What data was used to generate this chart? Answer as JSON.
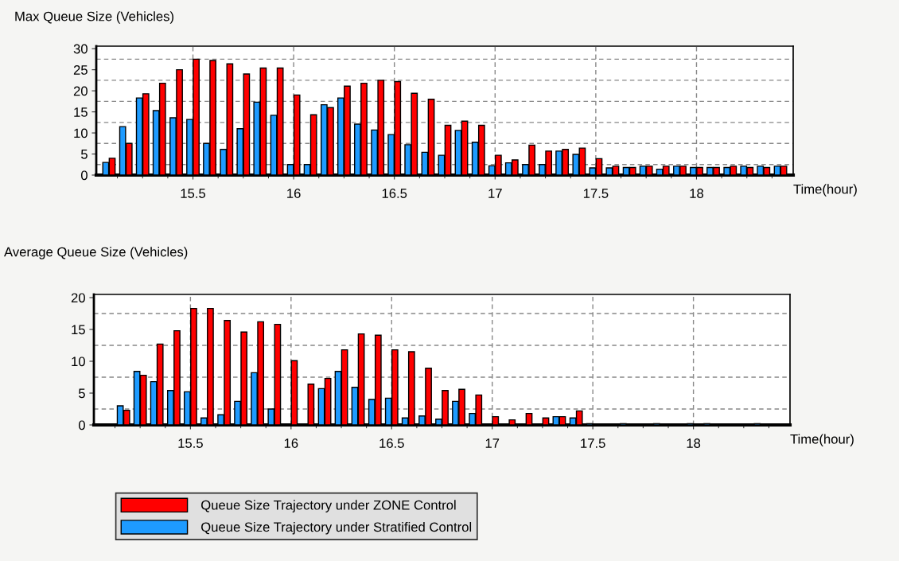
{
  "chart_data": [
    {
      "type": "bar",
      "title": "Max Queue Size (Vehicles)",
      "xlabel": "Time(hour)",
      "x": [
        15.083,
        15.167,
        15.25,
        15.333,
        15.417,
        15.5,
        15.583,
        15.667,
        15.75,
        15.833,
        15.917,
        16,
        16.083,
        16.167,
        16.25,
        16.333,
        16.417,
        16.5,
        16.583,
        16.667,
        16.75,
        16.833,
        16.917,
        17,
        17.083,
        17.167,
        17.25,
        17.333,
        17.417,
        17.5,
        17.583,
        17.667,
        17.75,
        17.833,
        17.917,
        18,
        18.083,
        18.167,
        18.25,
        18.333,
        18.417
      ],
      "series": [
        {
          "color": "#1e9bff",
          "values": [
            3,
            11.5,
            18.3,
            15.3,
            13.6,
            13.2,
            7.5,
            6.1,
            11,
            17.3,
            14.2,
            2.5,
            2.5,
            16.7,
            18.3,
            12.1,
            10.7,
            9.6,
            7.2,
            5.4,
            4.7,
            10.6,
            7.8,
            2.2,
            2.9,
            2.5,
            2.5,
            5.7,
            4.9,
            1.7,
            1.7,
            1.8,
            2.1,
            1.4,
            2.1,
            1.8,
            1.8,
            1.8,
            2.1,
            2.1,
            2.1
          ]
        },
        {
          "color": "#ff0000",
          "values": [
            4,
            7.5,
            19.3,
            21.8,
            25,
            27.5,
            27.2,
            26.4,
            24,
            25.4,
            25.4,
            19,
            14.3,
            16,
            21.1,
            21.8,
            22.5,
            22.2,
            19.4,
            18,
            11.8,
            12.8,
            11.8,
            4.7,
            3.6,
            7.1,
            5.7,
            6.1,
            6.4,
            3.9,
            2.1,
            1.8,
            2.1,
            2.1,
            2.1,
            1.8,
            1.8,
            2.1,
            1.8,
            1.8,
            2.1
          ]
        }
      ],
      "xlim": [
        15.02,
        18.48
      ],
      "xticks": [
        {
          "value": 15.125,
          "label": null
        },
        {
          "value": 15.25,
          "label": null
        },
        {
          "value": 15.375,
          "label": null
        },
        15.5,
        {
          "value": 15.625,
          "label": null
        },
        {
          "value": 15.75,
          "label": null
        },
        {
          "value": 15.875,
          "label": null
        },
        16,
        {
          "value": 16.125,
          "label": null
        },
        {
          "value": 16.25,
          "label": null
        },
        {
          "value": 16.375,
          "label": null
        },
        16.5,
        {
          "value": 16.625,
          "label": null
        },
        {
          "value": 16.75,
          "label": null
        },
        {
          "value": 16.875,
          "label": null
        },
        17,
        {
          "value": 17.125,
          "label": null
        },
        {
          "value": 17.25,
          "label": null
        },
        {
          "value": 17.375,
          "label": null
        },
        17.5,
        {
          "value": 17.625,
          "label": null
        },
        {
          "value": 17.75,
          "label": null
        },
        {
          "value": 17.875,
          "label": null
        },
        18,
        {
          "value": 18.125,
          "label": null
        },
        {
          "value": 18.25,
          "label": null
        },
        {
          "value": 18.375,
          "label": null
        }
      ],
      "ylim": [
        0,
        30.6
      ],
      "yticks": [
        0,
        {
          "value": 2.5,
          "label": null
        },
        5,
        {
          "value": 7.5,
          "label": null
        },
        10,
        {
          "value": 12.5,
          "label": null
        },
        15,
        {
          "value": 17.5,
          "label": null
        },
        20,
        {
          "value": 22.5,
          "label": null
        },
        25,
        {
          "value": 27.5,
          "label": null
        },
        30
      ],
      "grid": true
    },
    {
      "type": "bar",
      "title": "Average Queue Size (Vehicles)",
      "xlabel": "Time(hour)",
      "x": [
        15.083,
        15.167,
        15.25,
        15.333,
        15.417,
        15.5,
        15.583,
        15.667,
        15.75,
        15.833,
        15.917,
        16,
        16.083,
        16.167,
        16.25,
        16.333,
        16.417,
        16.5,
        16.583,
        16.667,
        16.75,
        16.833,
        16.917,
        17,
        17.083,
        17.167,
        17.25,
        17.333,
        17.417,
        17.5,
        17.583,
        17.667,
        17.75,
        17.833,
        17.917,
        18,
        18.083,
        18.167,
        18.25,
        18.333,
        18.417
      ],
      "series": [
        {
          "name": "Queue Size Trajectory under Stratified Control",
          "color": "#1e9bff",
          "values": [
            0,
            3.0,
            8.4,
            6.8,
            5.4,
            5.2,
            1.1,
            1.6,
            3.7,
            8.2,
            2.5,
            0,
            0,
            5.7,
            8.4,
            5.9,
            4.0,
            4.2,
            1.1,
            1.4,
            0.9,
            3.7,
            1.8,
            0,
            0,
            0,
            0,
            1.3,
            1.1,
            0.2,
            0,
            0.2,
            0,
            0.2,
            0,
            0.2,
            0.2,
            0,
            0,
            0.2,
            0
          ]
        },
        {
          "name": "Queue Size Trajectory under ZONE Control",
          "color": "#ff0000",
          "values": [
            0,
            2.3,
            7.8,
            12.7,
            14.8,
            18.3,
            18.3,
            16.4,
            14.6,
            16.2,
            15.8,
            10.1,
            6.4,
            7.3,
            11.8,
            14.3,
            14.1,
            11.8,
            11.5,
            8.9,
            5.4,
            5.6,
            4.7,
            1.3,
            0.8,
            1.8,
            1.1,
            1.3,
            2.2,
            0,
            0,
            0,
            0,
            0,
            0,
            0,
            0,
            0,
            0,
            0,
            0
          ]
        }
      ],
      "xlim": [
        15.02,
        18.48
      ],
      "xticks": [
        {
          "value": 15.125,
          "label": null
        },
        {
          "value": 15.25,
          "label": null
        },
        {
          "value": 15.375,
          "label": null
        },
        15.5,
        {
          "value": 15.625,
          "label": null
        },
        {
          "value": 15.75,
          "label": null
        },
        {
          "value": 15.875,
          "label": null
        },
        16,
        {
          "value": 16.125,
          "label": null
        },
        {
          "value": 16.25,
          "label": null
        },
        {
          "value": 16.375,
          "label": null
        },
        16.5,
        {
          "value": 16.625,
          "label": null
        },
        {
          "value": 16.75,
          "label": null
        },
        {
          "value": 16.875,
          "label": null
        },
        17,
        {
          "value": 17.125,
          "label": null
        },
        {
          "value": 17.25,
          "label": null
        },
        {
          "value": 17.375,
          "label": null
        },
        17.5,
        {
          "value": 17.625,
          "label": null
        },
        {
          "value": 17.75,
          "label": null
        },
        {
          "value": 17.875,
          "label": null
        },
        18,
        {
          "value": 18.125,
          "label": null
        },
        {
          "value": 18.25,
          "label": null
        },
        {
          "value": 18.375,
          "label": null
        }
      ],
      "ylim": [
        0,
        20.5
      ],
      "yticks": [
        0,
        {
          "value": 2.5,
          "label": null
        },
        5,
        {
          "value": 7.5,
          "label": null
        },
        10,
        {
          "value": 12.5,
          "label": null
        },
        15,
        {
          "value": 17.5,
          "label": null
        },
        20
      ],
      "grid": true,
      "legend": "bottom"
    }
  ]
}
